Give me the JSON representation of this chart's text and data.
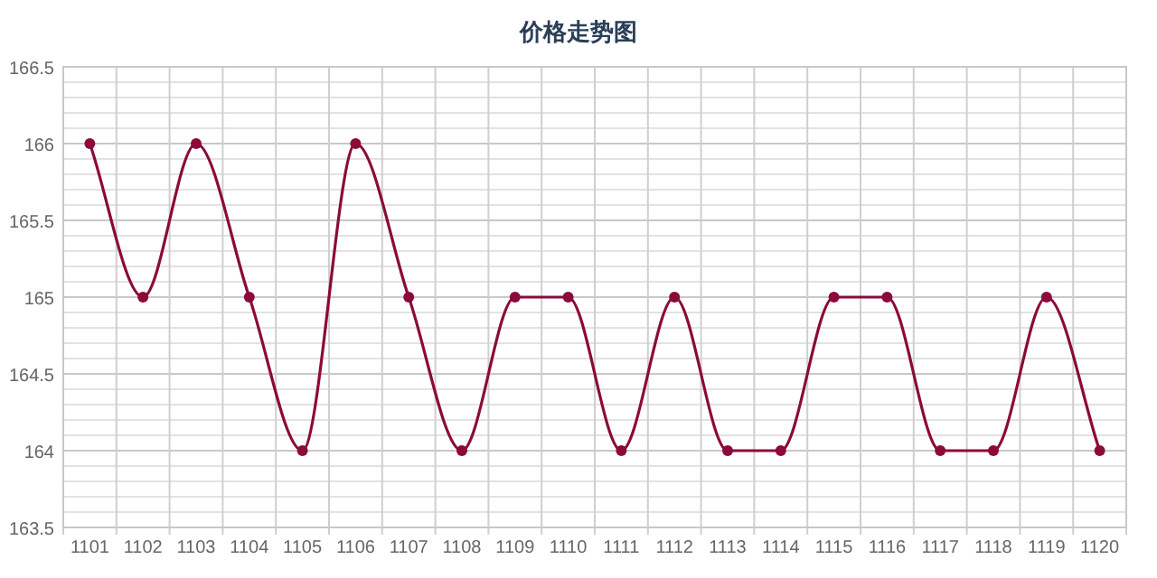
{
  "chart_data": {
    "type": "line",
    "title": "价格走势图",
    "categories": [
      "1101",
      "1102",
      "1103",
      "1104",
      "1105",
      "1106",
      "1107",
      "1108",
      "1109",
      "1110",
      "1111",
      "1112",
      "1113",
      "1114",
      "1115",
      "1116",
      "1117",
      "1118",
      "1119",
      "1120"
    ],
    "series": [
      {
        "color": "#8b0a3a",
        "values": [
          166,
          165,
          166,
          165,
          164,
          166,
          165,
          164,
          165,
          165,
          164,
          165,
          164,
          164,
          165,
          165,
          164,
          164,
          165,
          164
        ]
      }
    ],
    "ylim": [
      163.5,
      166.5
    ],
    "yticks": [
      163.5,
      {
        "value": 163.6,
        "label": null
      },
      {
        "value": 163.7,
        "label": null
      },
      {
        "value": 163.8,
        "label": null
      },
      {
        "value": 163.9,
        "label": null
      },
      164,
      {
        "value": 164.1,
        "label": null
      },
      {
        "value": 164.2,
        "label": null
      },
      {
        "value": 164.3,
        "label": null
      },
      {
        "value": 164.4,
        "label": null
      },
      164.5,
      {
        "value": 164.6,
        "label": null
      },
      {
        "value": 164.7,
        "label": null
      },
      {
        "value": 164.8,
        "label": null
      },
      {
        "value": 164.9,
        "label": null
      },
      165,
      {
        "value": 165.1,
        "label": null
      },
      {
        "value": 165.2,
        "label": null
      },
      {
        "value": 165.3,
        "label": null
      },
      {
        "value": 165.4,
        "label": null
      },
      165.5,
      {
        "value": 165.6,
        "label": null
      },
      {
        "value": 165.7,
        "label": null
      },
      {
        "value": 165.8,
        "label": null
      },
      {
        "value": 165.9,
        "label": null
      },
      166,
      {
        "value": 166.1,
        "label": null
      },
      {
        "value": 166.2,
        "label": null
      },
      {
        "value": 166.3,
        "label": null
      },
      {
        "value": 166.4,
        "label": null
      },
      166.5
    ],
    "grid": true,
    "marker": "circle",
    "line_style": "solid"
  }
}
